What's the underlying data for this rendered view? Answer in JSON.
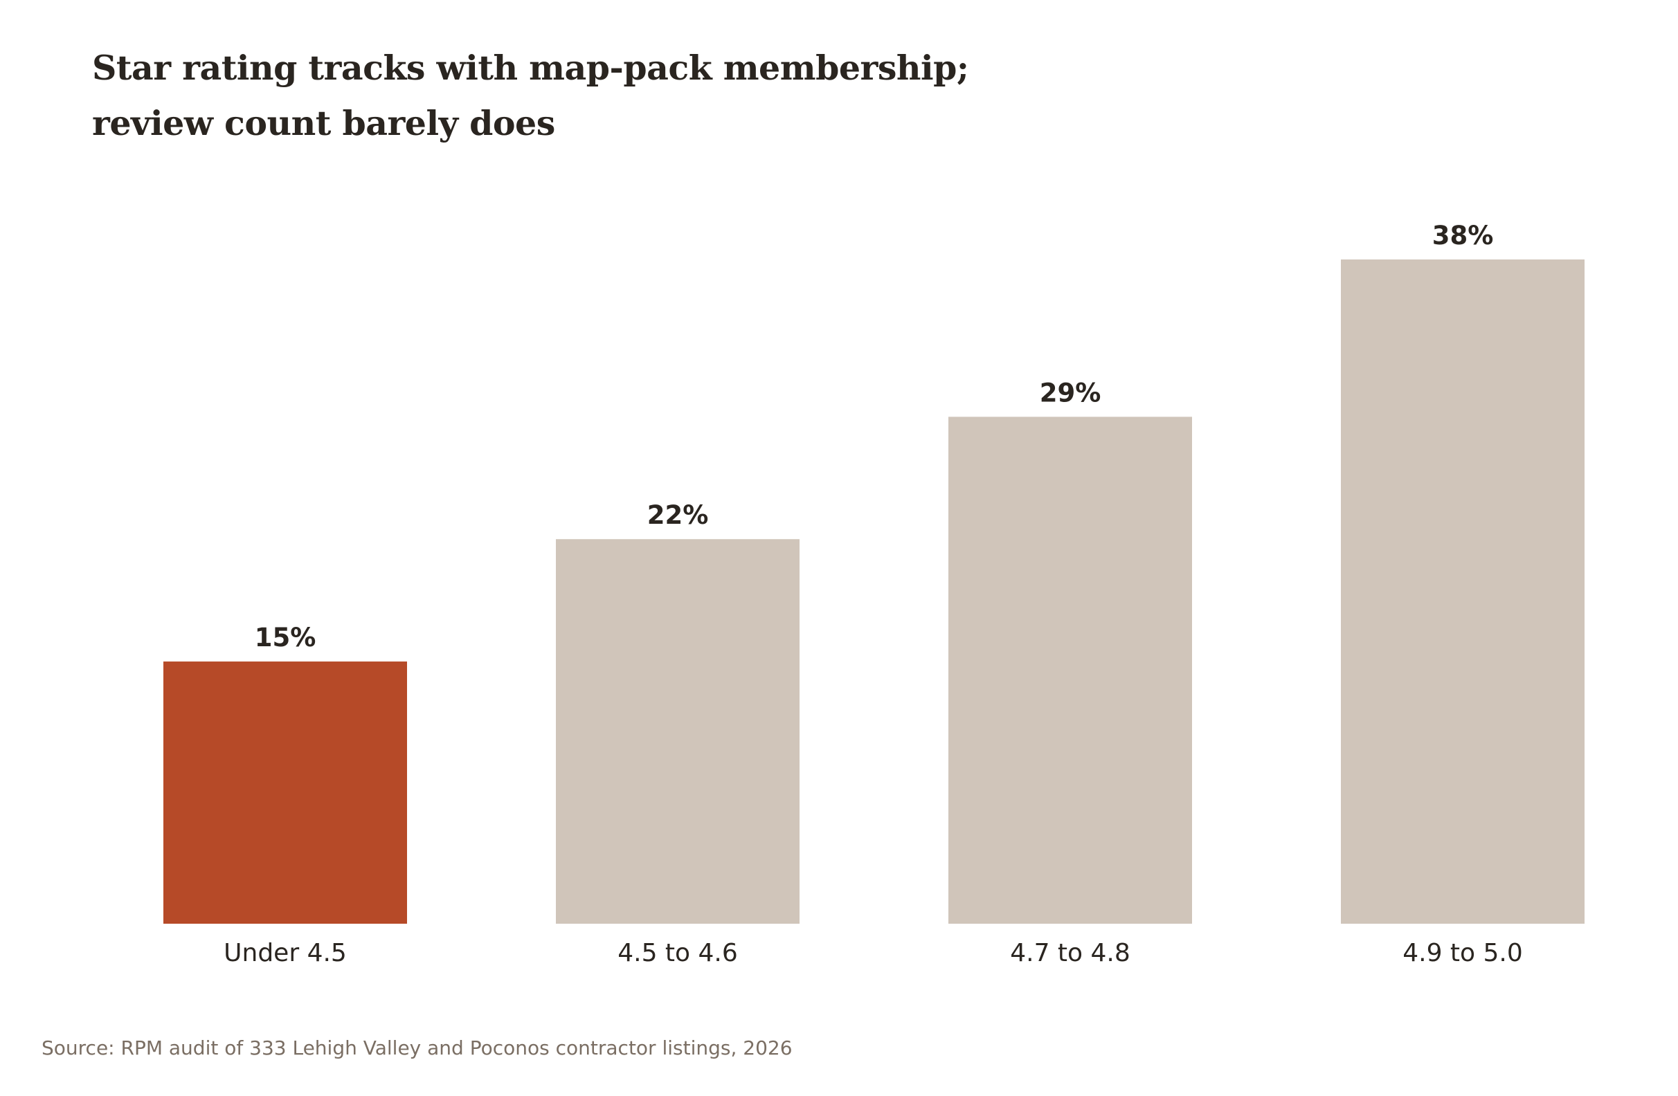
{
  "chart_data": {
    "type": "bar",
    "title_lines": [
      "Star rating tracks with map-pack membership;",
      "review count barely does"
    ],
    "categories": [
      "Under 4.5",
      "4.5 to 4.6",
      "4.7 to 4.8",
      "4.9 to 5.0"
    ],
    "values": [
      15,
      22,
      29,
      38
    ],
    "value_labels": [
      "15%",
      "22%",
      "29%",
      "38%"
    ],
    "xlabel": "",
    "ylabel": "",
    "ylim": [
      0,
      38
    ],
    "grid": false,
    "legend": "none",
    "colors": {
      "highlight": "#b64a28",
      "default": "#d0c5ba",
      "text": "#2a2520"
    },
    "highlight_index": 0
  },
  "source": "Source: RPM audit of 333 Lehigh Valley and Poconos contractor listings, 2026"
}
